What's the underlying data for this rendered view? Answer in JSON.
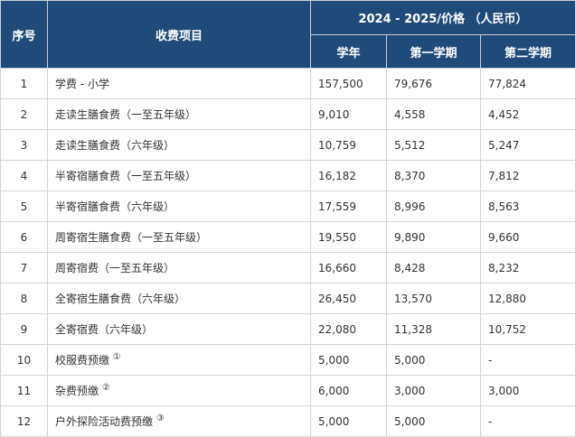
{
  "table": {
    "header": {
      "no": "序号",
      "item": "收费项目",
      "price_group": "2024 - 2025/价格 （人民币）",
      "year": "学年",
      "term1": "第一学期",
      "term2": "第二学期"
    },
    "rows": [
      {
        "no": "1",
        "item": "学费 - 小学",
        "year": "157,500",
        "term1": "79,676",
        "term2": "77,824"
      },
      {
        "no": "2",
        "item": "走读生膳食费（一至五年级）",
        "year": "9,010",
        "term1": "4,558",
        "term2": "4,452"
      },
      {
        "no": "3",
        "item": "走读生膳食费（六年级）",
        "year": "10,759",
        "term1": "5,512",
        "term2": "5,247"
      },
      {
        "no": "4",
        "item": "半寄宿膳食费（一至五年级）",
        "year": "16,182",
        "term1": "8,370",
        "term2": "7,812"
      },
      {
        "no": "5",
        "item": "半寄宿膳食费（六年级）",
        "year": "17,559",
        "term1": "8,996",
        "term2": "8,563"
      },
      {
        "no": "6",
        "item": "周寄宿生膳食费（一至五年级）",
        "year": "19,550",
        "term1": "9,890",
        "term2": "9,660"
      },
      {
        "no": "7",
        "item": "周寄宿费（一至五年级）",
        "year": "16,660",
        "term1": "8,428",
        "term2": "8,232"
      },
      {
        "no": "8",
        "item": "全寄宿生膳食费（六年级）",
        "year": "26,450",
        "term1": "13,570",
        "term2": "12,880"
      },
      {
        "no": "9",
        "item": "全寄宿费（六年级）",
        "year": "22,080",
        "term1": "11,328",
        "term2": "10,752"
      },
      {
        "no": "10",
        "item": "校服费预缴",
        "note": "①",
        "year": "5,000",
        "term1": "5,000",
        "term2": "-"
      },
      {
        "no": "11",
        "item": "杂费预缴",
        "note": "②",
        "year": "6,000",
        "term1": "3,000",
        "term2": "3,000"
      },
      {
        "no": "12",
        "item": "户外探险活动费预缴",
        "note": "③",
        "year": "5,000",
        "term1": "5,000",
        "term2": "-"
      }
    ]
  }
}
